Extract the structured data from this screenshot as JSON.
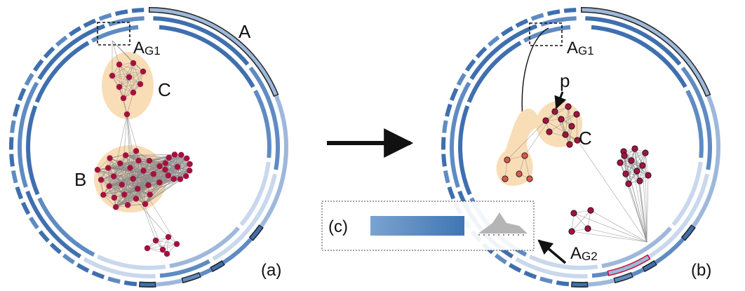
{
  "colors": {
    "ring_dark": "#3f6fae",
    "ring_mid": "#5f8bc2",
    "ring_light": "#9db8da",
    "ring_pale": "#c9d8ec",
    "node": "#a3123f",
    "node_light": "#d4584f",
    "hull": "#f9ddb6",
    "edge": "#8a8a8a",
    "arrow": "#111111",
    "highlight": "#c0143c"
  },
  "left_panel": {
    "caption": "(a)",
    "label_A": "A",
    "label_AG1_main": "A",
    "label_AG1_sub": "G1",
    "label_B": "B",
    "label_C": "C"
  },
  "right_panel": {
    "caption": "(b)",
    "label_AG1_main": "A",
    "label_AG1_sub": "G1",
    "label_AG2_main": "A",
    "label_AG2_sub": "G2",
    "label_C": "C",
    "label_p": "p"
  },
  "inset": {
    "caption": "(c)"
  }
}
